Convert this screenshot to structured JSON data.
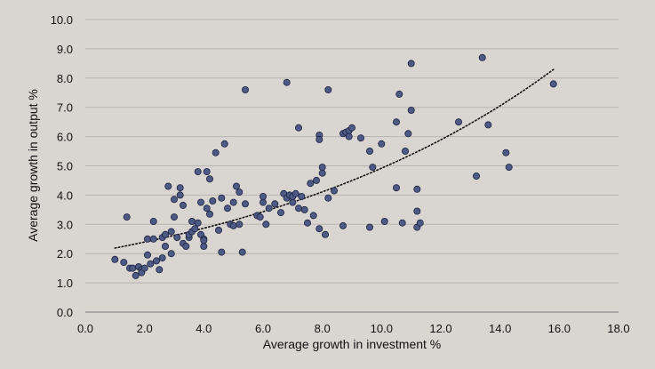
{
  "chart_data": {
    "type": "scatter",
    "title": "",
    "xlabel": "Average growth in investment %",
    "ylabel": "Average growth in output %",
    "xlim": [
      0,
      18
    ],
    "ylim": [
      0,
      10
    ],
    "x_ticks": [
      0,
      2,
      4,
      6,
      8,
      10,
      12,
      14,
      16,
      18
    ],
    "y_ticks": [
      0,
      1,
      2,
      3,
      4,
      5,
      6,
      7,
      8,
      9,
      10
    ],
    "x_tick_labels": [
      "0.0",
      "2.0",
      "4.0",
      "6.0",
      "8.0",
      "10.0",
      "12.0",
      "14.0",
      "16.0",
      "18.0"
    ],
    "y_tick_labels": [
      "0.0",
      "1.0",
      "2.0",
      "3.0",
      "4.0",
      "5.0",
      "6.0",
      "7.0",
      "8.0",
      "9.0",
      "10.0"
    ],
    "grid": "horizontal",
    "marker_color": "#4d5a86",
    "marker_edge_color": "#1e2440",
    "trend_color": "#111111",
    "trendline": {
      "kind": "exponential",
      "x_range": [
        1.0,
        15.8
      ],
      "a": 2.0,
      "b": 0.09
    },
    "series": [
      {
        "points": [
          [
            1.0,
            1.8
          ],
          [
            1.3,
            1.7
          ],
          [
            1.4,
            3.25
          ],
          [
            1.5,
            1.5
          ],
          [
            1.6,
            1.5
          ],
          [
            1.7,
            1.25
          ],
          [
            1.8,
            1.55
          ],
          [
            1.9,
            1.45
          ],
          [
            1.9,
            1.35
          ],
          [
            2.0,
            1.5
          ],
          [
            2.1,
            1.95
          ],
          [
            2.1,
            2.5
          ],
          [
            2.2,
            1.65
          ],
          [
            2.3,
            2.5
          ],
          [
            2.3,
            3.1
          ],
          [
            2.4,
            1.75
          ],
          [
            2.5,
            1.45
          ],
          [
            2.6,
            2.55
          ],
          [
            2.6,
            1.85
          ],
          [
            2.7,
            2.25
          ],
          [
            2.7,
            2.65
          ],
          [
            2.8,
            4.3
          ],
          [
            2.9,
            2.0
          ],
          [
            2.9,
            2.75
          ],
          [
            3.0,
            3.25
          ],
          [
            3.0,
            3.85
          ],
          [
            3.1,
            2.55
          ],
          [
            3.2,
            4.0
          ],
          [
            3.2,
            4.25
          ],
          [
            3.3,
            2.35
          ],
          [
            3.3,
            3.65
          ],
          [
            3.4,
            2.25
          ],
          [
            3.5,
            2.55
          ],
          [
            3.5,
            2.65
          ],
          [
            3.6,
            2.75
          ],
          [
            3.6,
            3.1
          ],
          [
            3.7,
            2.85
          ],
          [
            3.8,
            4.8
          ],
          [
            3.8,
            3.05
          ],
          [
            3.9,
            2.65
          ],
          [
            3.9,
            3.75
          ],
          [
            4.0,
            2.5
          ],
          [
            4.0,
            2.25
          ],
          [
            4.0,
            2.45
          ],
          [
            4.1,
            4.8
          ],
          [
            4.1,
            3.55
          ],
          [
            4.2,
            4.55
          ],
          [
            4.2,
            3.35
          ],
          [
            4.3,
            3.8
          ],
          [
            4.4,
            5.45
          ],
          [
            4.5,
            2.8
          ],
          [
            4.6,
            3.9
          ],
          [
            4.6,
            2.05
          ],
          [
            4.7,
            5.75
          ],
          [
            4.8,
            3.55
          ],
          [
            4.9,
            3.0
          ],
          [
            5.0,
            3.75
          ],
          [
            5.0,
            2.95
          ],
          [
            5.1,
            4.3
          ],
          [
            5.2,
            4.1
          ],
          [
            5.2,
            3.0
          ],
          [
            5.3,
            2.05
          ],
          [
            5.4,
            3.7
          ],
          [
            5.4,
            7.6
          ],
          [
            5.8,
            3.3
          ],
          [
            5.9,
            3.25
          ],
          [
            6.0,
            3.75
          ],
          [
            6.0,
            3.95
          ],
          [
            6.1,
            3.0
          ],
          [
            6.2,
            3.55
          ],
          [
            6.4,
            3.7
          ],
          [
            6.6,
            3.4
          ],
          [
            6.7,
            4.05
          ],
          [
            6.8,
            7.85
          ],
          [
            6.8,
            3.9
          ],
          [
            6.9,
            4.0
          ],
          [
            7.0,
            3.75
          ],
          [
            7.0,
            3.95
          ],
          [
            7.1,
            4.05
          ],
          [
            7.2,
            3.55
          ],
          [
            7.2,
            6.3
          ],
          [
            7.3,
            3.95
          ],
          [
            7.4,
            3.5
          ],
          [
            7.5,
            3.05
          ],
          [
            7.6,
            4.4
          ],
          [
            7.7,
            3.3
          ],
          [
            7.8,
            4.5
          ],
          [
            7.9,
            6.05
          ],
          [
            7.9,
            2.85
          ],
          [
            7.9,
            5.9
          ],
          [
            8.0,
            4.75
          ],
          [
            8.0,
            4.95
          ],
          [
            8.1,
            2.65
          ],
          [
            8.2,
            7.6
          ],
          [
            8.2,
            3.9
          ],
          [
            8.4,
            4.15
          ],
          [
            8.7,
            6.1
          ],
          [
            8.7,
            2.95
          ],
          [
            8.8,
            6.15
          ],
          [
            8.9,
            6.2
          ],
          [
            8.9,
            6.0
          ],
          [
            9.0,
            6.3
          ],
          [
            9.3,
            5.95
          ],
          [
            9.6,
            5.5
          ],
          [
            9.6,
            2.9
          ],
          [
            9.7,
            4.95
          ],
          [
            10.0,
            5.75
          ],
          [
            10.1,
            3.1
          ],
          [
            10.5,
            4.25
          ],
          [
            10.5,
            6.5
          ],
          [
            10.6,
            7.45
          ],
          [
            10.7,
            3.05
          ],
          [
            10.8,
            5.5
          ],
          [
            10.9,
            6.1
          ],
          [
            11.0,
            8.5
          ],
          [
            11.0,
            6.9
          ],
          [
            11.2,
            4.2
          ],
          [
            11.2,
            3.45
          ],
          [
            11.2,
            2.9
          ],
          [
            11.3,
            3.05
          ],
          [
            12.6,
            6.5
          ],
          [
            13.2,
            4.65
          ],
          [
            13.4,
            8.7
          ],
          [
            13.6,
            6.4
          ],
          [
            14.2,
            5.45
          ],
          [
            14.3,
            4.95
          ],
          [
            15.8,
            7.8
          ]
        ]
      }
    ]
  }
}
